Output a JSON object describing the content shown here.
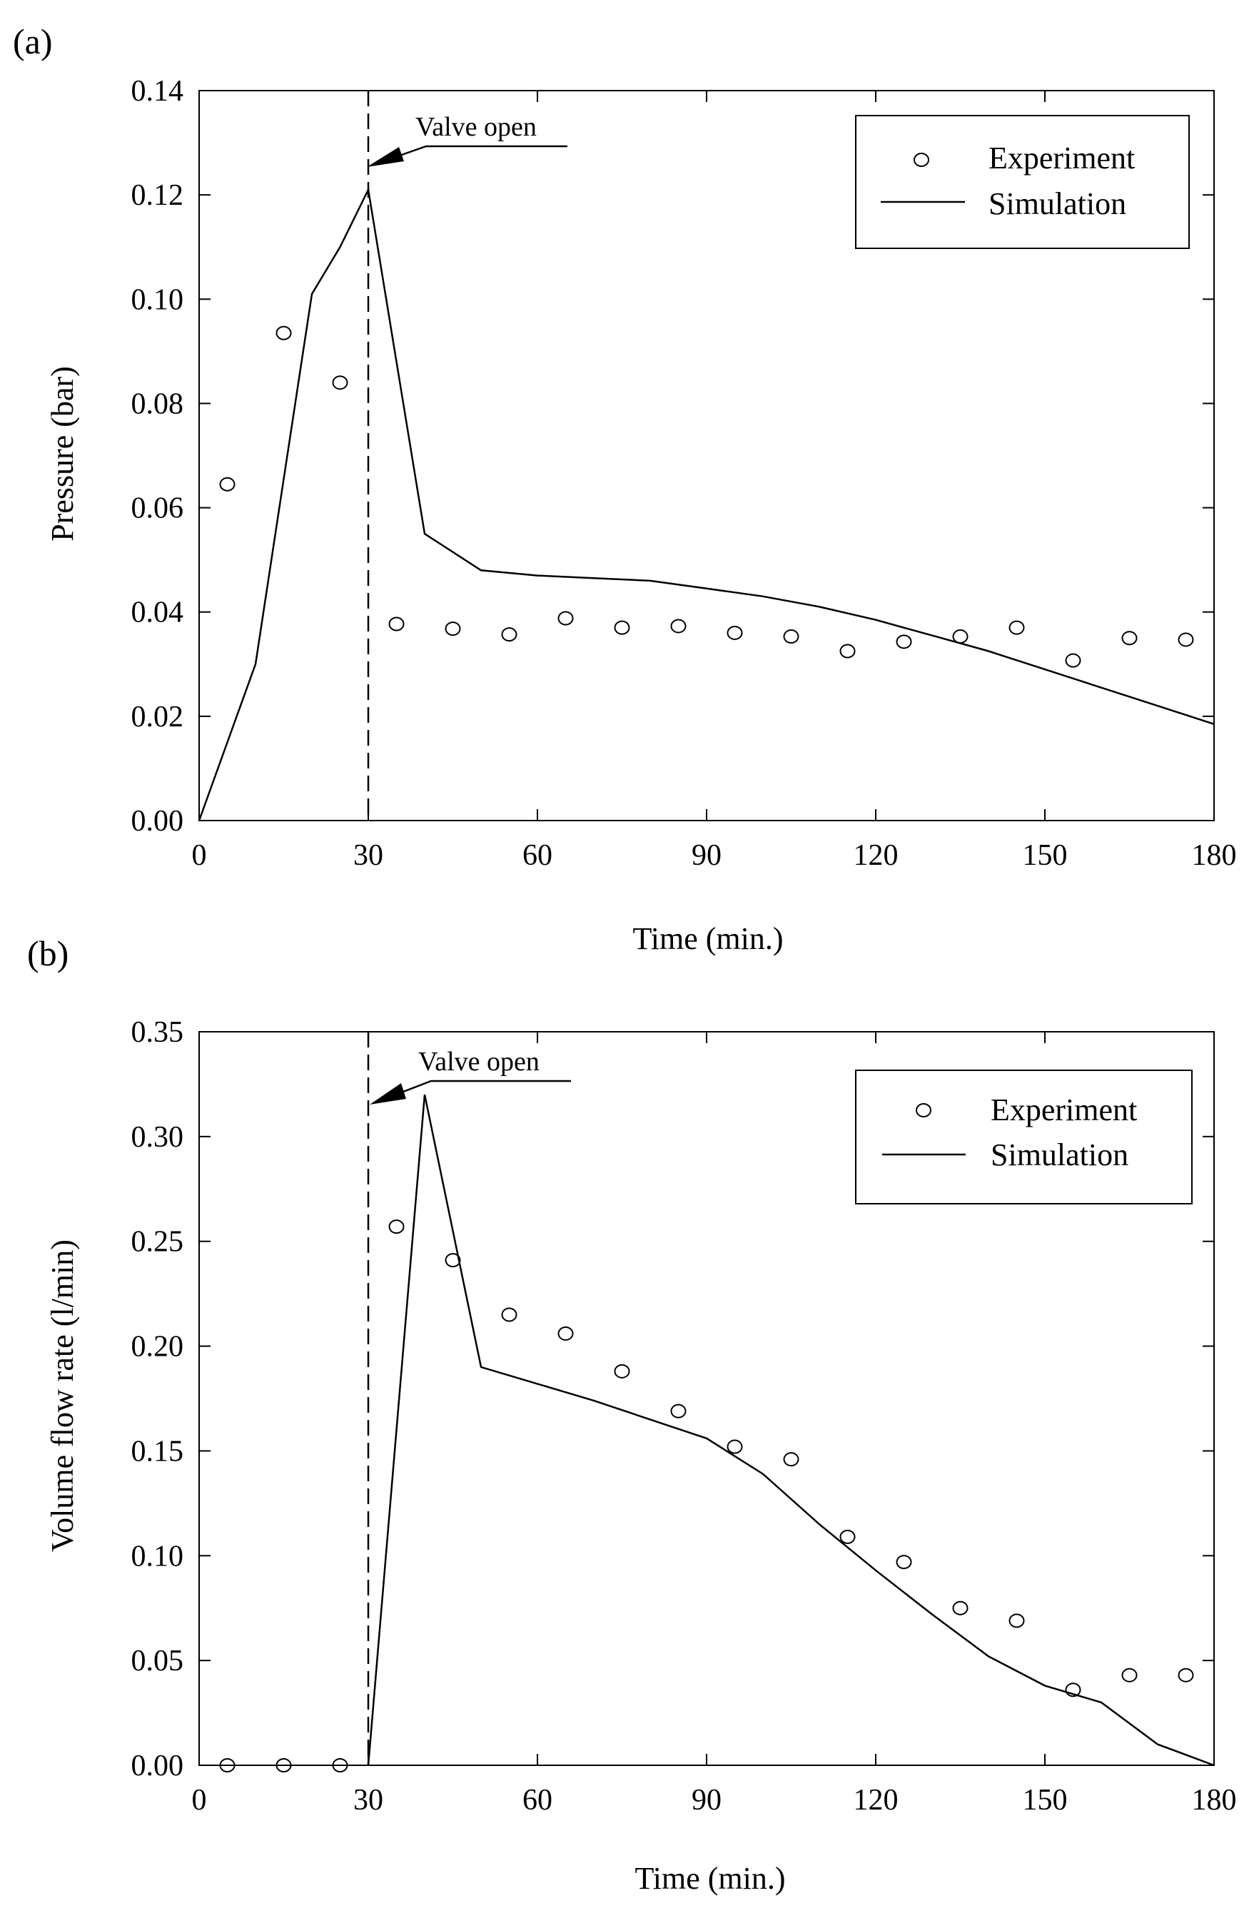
{
  "chart_data": [
    {
      "type": "scatter+line",
      "panel_label": "(a)",
      "xlabel": "Time (min.)",
      "ylabel": "Pressure (bar)",
      "xlim": [
        0,
        180
      ],
      "ylim": [
        0,
        0.14
      ],
      "xticks": [
        0,
        30,
        60,
        90,
        120,
        150,
        180
      ],
      "yticks": [
        "0.00",
        "0.02",
        "0.04",
        "0.06",
        "0.08",
        "0.10",
        "0.12",
        "0.14"
      ],
      "grid": false,
      "legend": {
        "placement": "top-right",
        "entries": [
          "Experiment",
          "Simulation"
        ]
      },
      "annotation": {
        "text": "Valve open",
        "x": 30
      },
      "series": [
        {
          "name": "Experiment",
          "style": "circle",
          "points": [
            [
              5,
              0.0645
            ],
            [
              15,
              0.0935
            ],
            [
              25,
              0.084
            ],
            [
              35,
              0.0377
            ],
            [
              45,
              0.0368
            ],
            [
              55,
              0.0357
            ],
            [
              65,
              0.0388
            ],
            [
              75,
              0.037
            ],
            [
              85,
              0.0373
            ],
            [
              95,
              0.036
            ],
            [
              105,
              0.0353
            ],
            [
              115,
              0.0325
            ],
            [
              125,
              0.0343
            ],
            [
              135,
              0.0353
            ],
            [
              145,
              0.037
            ],
            [
              155,
              0.0307
            ],
            [
              165,
              0.035
            ],
            [
              175,
              0.0347
            ]
          ]
        },
        {
          "name": "Simulation",
          "style": "line",
          "points": [
            [
              0,
              0
            ],
            [
              10,
              0.03
            ],
            [
              20,
              0.101
            ],
            [
              25,
              0.11
            ],
            [
              30,
              0.121
            ],
            [
              40,
              0.055
            ],
            [
              50,
              0.048
            ],
            [
              60,
              0.047
            ],
            [
              70,
              0.0465
            ],
            [
              80,
              0.046
            ],
            [
              90,
              0.0445
            ],
            [
              100,
              0.043
            ],
            [
              110,
              0.041
            ],
            [
              120,
              0.0385
            ],
            [
              130,
              0.0355
            ],
            [
              140,
              0.0325
            ],
            [
              150,
              0.029
            ],
            [
              160,
              0.0255
            ],
            [
              170,
              0.022
            ],
            [
              180,
              0.0185
            ]
          ]
        }
      ]
    },
    {
      "type": "scatter+line",
      "panel_label": "(b)",
      "xlabel": "Time (min.)",
      "ylabel": "Volume flow rate (l/min)",
      "xlim": [
        0,
        180
      ],
      "ylim": [
        0,
        0.35
      ],
      "xticks": [
        0,
        30,
        60,
        90,
        120,
        150,
        180
      ],
      "yticks": [
        "0.00",
        "0.05",
        "0.10",
        "0.15",
        "0.20",
        "0.25",
        "0.30",
        "0.35"
      ],
      "grid": false,
      "legend": {
        "placement": "top-right",
        "entries": [
          "Experiment",
          "Simulation"
        ]
      },
      "annotation": {
        "text": "Valve open",
        "x": 30
      },
      "series": [
        {
          "name": "Experiment",
          "style": "circle",
          "points": [
            [
              5,
              0.0
            ],
            [
              15,
              0.0
            ],
            [
              25,
              0.0
            ],
            [
              35,
              0.257
            ],
            [
              45,
              0.241
            ],
            [
              55,
              0.215
            ],
            [
              65,
              0.206
            ],
            [
              75,
              0.188
            ],
            [
              85,
              0.169
            ],
            [
              95,
              0.152
            ],
            [
              105,
              0.146
            ],
            [
              115,
              0.109
            ],
            [
              125,
              0.097
            ],
            [
              135,
              0.075
            ],
            [
              145,
              0.069
            ],
            [
              155,
              0.036
            ],
            [
              165,
              0.043
            ],
            [
              175,
              0.043
            ]
          ]
        },
        {
          "name": "Simulation",
          "style": "line",
          "points": [
            [
              30,
              0
            ],
            [
              40,
              0.32
            ],
            [
              50,
              0.19
            ],
            [
              60,
              0.182
            ],
            [
              70,
              0.174
            ],
            [
              80,
              0.165
            ],
            [
              90,
              0.156
            ],
            [
              100,
              0.139
            ],
            [
              110,
              0.115
            ],
            [
              120,
              0.093
            ],
            [
              130,
              0.072
            ],
            [
              140,
              0.052
            ],
            [
              150,
              0.038
            ],
            [
              160,
              0.03
            ],
            [
              170,
              0.01
            ],
            [
              180,
              0
            ]
          ]
        }
      ]
    }
  ]
}
